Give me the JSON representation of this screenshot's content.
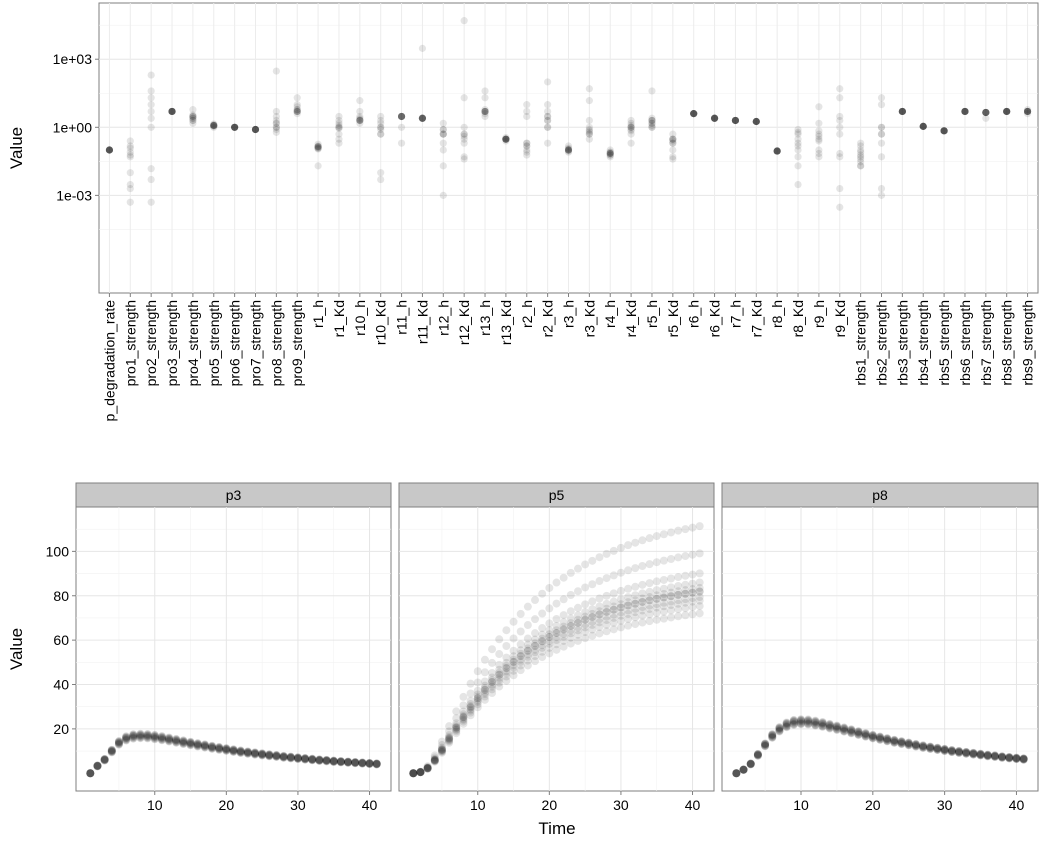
{
  "chart_data": [
    {
      "type": "scatter",
      "title": "",
      "xlabel": "",
      "ylabel": "Value",
      "y_scale": "log10",
      "ylim": [
        5e-08,
        300000
      ],
      "y_ticks": [
        {
          "value": 1000,
          "label": "1e+03"
        },
        {
          "value": 1,
          "label": "1e+00"
        },
        {
          "value": 0.001,
          "label": "1e-03"
        }
      ],
      "grid": true,
      "marker_color": "#000000",
      "marker_opacity": 0.1,
      "categories": [
        "p_degradation_rate",
        "pro1_strength",
        "pro2_strength",
        "pro3_strength",
        "pro4_strength",
        "pro5_strength",
        "pro6_strength",
        "pro7_strength",
        "pro8_strength",
        "pro9_strength",
        "r1_h",
        "r1_Kd",
        "r10_h",
        "r10_Kd",
        "r11_h",
        "r11_Kd",
        "r12_h",
        "r12_Kd",
        "r13_h",
        "r13_Kd",
        "r2_h",
        "r2_Kd",
        "r3_h",
        "r3_Kd",
        "r4_h",
        "r4_Kd",
        "r5_h",
        "r5_Kd",
        "r6_h",
        "r6_Kd",
        "r7_h",
        "r7_Kd",
        "r8_h",
        "r8_Kd",
        "r9_h",
        "r9_Kd",
        "rbs1_strength",
        "rbs2_strength",
        "rbs3_strength",
        "rbs4_strength",
        "rbs5_strength",
        "rbs6_strength",
        "rbs7_strength",
        "rbs8_strength",
        "rbs9_strength"
      ],
      "values": [
        [
          0.1,
          0.1,
          0.1,
          0.1,
          0.1,
          0.1,
          0.1,
          0.1,
          0.1,
          0.1
        ],
        [
          0.12,
          0.05,
          0.08,
          0.25,
          0.002,
          0.0005,
          0.003,
          0.15,
          0.06,
          0.01
        ],
        [
          0.015,
          0.005,
          0.0005,
          2.5,
          10,
          20,
          1,
          5,
          200,
          40
        ],
        [
          5,
          5,
          5,
          5,
          5,
          5,
          5,
          5,
          5,
          5
        ],
        [
          3,
          2,
          2.5,
          3.5,
          1.5,
          6,
          2,
          3,
          2.5,
          3
        ],
        [
          1.2,
          1.2,
          1.1,
          1.3,
          1.2,
          1,
          1.2,
          1.2,
          1.4,
          1.2
        ],
        [
          1,
          1,
          1,
          1,
          1,
          1,
          1,
          1,
          1,
          1
        ],
        [
          0.8,
          0.8,
          0.8,
          0.8,
          0.8,
          0.8,
          0.8,
          0.8,
          0.8,
          0.8
        ],
        [
          1.5,
          3,
          0.6,
          300,
          0.8,
          5,
          1,
          2,
          1,
          1.5
        ],
        [
          5,
          8,
          10,
          20,
          6,
          4,
          5,
          5,
          6,
          5
        ],
        [
          0.12,
          0.14,
          0.18,
          0.02,
          0.11,
          0.15,
          0.14,
          0.12,
          0.13,
          0.14
        ],
        [
          1,
          0.5,
          1.5,
          2,
          0.2,
          0.9,
          1.2,
          1,
          3,
          0.3
        ],
        [
          2,
          2.2,
          15,
          5,
          1.5,
          2.5,
          2,
          2,
          3,
          2
        ],
        [
          0.5,
          1,
          2,
          0.01,
          3,
          1,
          0.5,
          0.8,
          0.005,
          1.5
        ],
        [
          3,
          3,
          3,
          3,
          3,
          3,
          3,
          3,
          0.2,
          1
        ],
        [
          2.5,
          2.5,
          2.5,
          2.5,
          2.5,
          2.5,
          2.5,
          2.5,
          2.5,
          3000
        ],
        [
          0.8,
          0.5,
          0.02,
          0.2,
          1.5,
          0.1,
          0.001,
          0.5,
          0.8,
          0.5
        ],
        [
          0.5,
          0.4,
          0.3,
          20,
          0.05,
          0.04,
          50000,
          1,
          0.5,
          0.2
        ],
        [
          5,
          5,
          6,
          3,
          40,
          20,
          5,
          5,
          5,
          4
        ],
        [
          0.3,
          0.3,
          0.25,
          0.35,
          0.3,
          0.3,
          0.3,
          0.3,
          0.3,
          0.3
        ],
        [
          0.15,
          0.06,
          0.2,
          5,
          3,
          10,
          0.1,
          0.2,
          0.08,
          0.15
        ],
        [
          3,
          2,
          10,
          1,
          0.2,
          100,
          5,
          2,
          3,
          1
        ],
        [
          0.1,
          0.09,
          0.12,
          0.15,
          0.08,
          0.1,
          0.1,
          0.1,
          0.11,
          0.1
        ],
        [
          0.5,
          0.8,
          50,
          15,
          1,
          2,
          0.3,
          0.6,
          0.5,
          0.7
        ],
        [
          0.07,
          0.06,
          0.08,
          0.1,
          0.05,
          0.07,
          0.07,
          0.06,
          0.07,
          0.08
        ],
        [
          1,
          0.8,
          1.2,
          0.5,
          1.5,
          0.2,
          1,
          1,
          2,
          0.7
        ],
        [
          2,
          1.5,
          1,
          2.5,
          40,
          1.2,
          2,
          2,
          1.5,
          1
        ],
        [
          0.3,
          0.1,
          0.05,
          0.04,
          0.2,
          0.5,
          0.25,
          0.3,
          0.3,
          0.2
        ],
        [
          4,
          4,
          4,
          4,
          4,
          4,
          4,
          4,
          4,
          4
        ],
        [
          2.5,
          2.5,
          2.5,
          2.5,
          2.5,
          2.5,
          2.5,
          2.5,
          2.5,
          2.5
        ],
        [
          2,
          2,
          2,
          2,
          2,
          2,
          2,
          2,
          2,
          2
        ],
        [
          1.8,
          1.8,
          1.8,
          1.8,
          1.8,
          1.8,
          1.8,
          1.8,
          1.8,
          1.8
        ],
        [
          0.09,
          0.09,
          0.09,
          0.09,
          0.09,
          0.09,
          0.09,
          0.09,
          0.09,
          0.09
        ],
        [
          0.5,
          0.1,
          0.02,
          0.003,
          0.2,
          0.05,
          0.8,
          0.3,
          0.15,
          0.6
        ],
        [
          0.5,
          0.1,
          0.07,
          0.25,
          0.05,
          8,
          1.5,
          0.3,
          0.4,
          0.7
        ],
        [
          1,
          3,
          2,
          20,
          0.0003,
          0.05,
          0.07,
          50,
          0.5,
          0.002
        ],
        [
          0.06,
          0.04,
          0.03,
          0.02,
          0.1,
          0.15,
          0.05,
          0.2,
          0.02,
          0.08
        ],
        [
          0.5,
          0.001,
          0.002,
          0.2,
          10,
          20,
          1,
          1,
          0.5,
          0.05
        ],
        [
          5,
          5,
          5,
          5,
          5,
          5,
          5,
          5,
          5,
          5
        ],
        [
          1.1,
          1.1,
          1.1,
          1.1,
          1.1,
          1.1,
          1.1,
          1.1,
          1.1,
          1.1
        ],
        [
          0.7,
          0.7,
          0.7,
          0.7,
          0.7,
          0.7,
          0.7,
          0.7,
          0.7,
          0.7
        ],
        [
          5,
          5,
          5,
          5,
          5,
          5,
          5,
          5,
          5,
          5
        ],
        [
          4.5,
          4.5,
          4.5,
          4.5,
          4.5,
          4.5,
          4.5,
          4.5,
          4.5,
          2.5
        ],
        [
          5,
          5,
          5,
          5,
          5,
          5,
          5,
          5,
          5,
          5
        ],
        [
          5,
          5,
          5,
          4,
          6,
          5,
          5,
          5,
          5,
          5
        ]
      ]
    },
    {
      "type": "scatter",
      "title": "",
      "xlabel": "Time",
      "ylabel": "Value",
      "xlim": [
        -1,
        43
      ],
      "ylim": [
        -8,
        120
      ],
      "x_ticks": [
        10,
        20,
        30,
        40
      ],
      "y_ticks": [
        20,
        40,
        60,
        80,
        100
      ],
      "grid": true,
      "strip_fill": "#c8c8c8",
      "marker_color": "#000000",
      "marker_opacity": 0.1,
      "time": [
        1,
        2,
        3,
        4,
        5,
        6,
        7,
        8,
        9,
        10,
        11,
        12,
        13,
        14,
        15,
        16,
        17,
        18,
        19,
        20,
        21,
        22,
        23,
        24,
        25,
        26,
        27,
        28,
        29,
        30,
        31,
        32,
        33,
        34,
        35,
        36,
        37,
        38,
        39,
        40,
        41
      ],
      "panels": [
        {
          "name": "p3",
          "series": [
            {
              "scale": 1.0,
              "values": [
                0.0,
                3.3,
                6.1,
                10.0,
                13.7,
                15.7,
                16.6,
                16.8,
                16.7,
                16.3,
                15.8,
                15.2,
                14.6,
                14.0,
                13.4,
                12.8,
                12.3,
                11.7,
                11.2,
                10.7,
                10.2,
                9.7,
                9.3,
                8.9,
                8.5,
                8.1,
                7.8,
                7.4,
                7.1,
                6.8,
                6.5,
                6.2,
                5.9,
                5.7,
                5.4,
                5.2,
                5.0,
                4.8,
                4.6,
                4.4,
                4.2
              ]
            },
            {
              "scale": 1.03
            },
            {
              "scale": 0.97
            },
            {
              "scale": 1.06
            },
            {
              "scale": 0.94
            },
            {
              "scale": 1.02
            },
            {
              "scale": 0.98
            },
            {
              "scale": 1.05
            },
            {
              "scale": 0.95
            },
            {
              "scale": 1.01
            }
          ]
        },
        {
          "name": "p5",
          "series": [
            {
              "scale": 1.0,
              "values": [
                0.0,
                0.5,
                2.3,
                5.9,
                10.5,
                15.6,
                20.5,
                25.3,
                29.7,
                33.8,
                37.6,
                41.1,
                44.4,
                47.4,
                50.2,
                52.8,
                55.2,
                57.4,
                59.5,
                61.4,
                63.2,
                64.8,
                66.4,
                67.8,
                69.2,
                70.4,
                71.6,
                72.7,
                73.7,
                74.7,
                75.6,
                76.4,
                77.2,
                77.9,
                78.6,
                79.2,
                79.8,
                80.4,
                80.9,
                81.4,
                81.9
              ]
            },
            {
              "scale": 0.88
            },
            {
              "scale": 0.92
            },
            {
              "scale": 0.95
            },
            {
              "scale": 0.97
            },
            {
              "scale": 1.0
            },
            {
              "scale": 1.02
            },
            {
              "scale": 1.05
            },
            {
              "scale": 1.1
            },
            {
              "scale": 1.21
            },
            {
              "scale": 1.36
            }
          ]
        },
        {
          "name": "p8",
          "series": [
            {
              "scale": 1.0,
              "values": [
                0.0,
                1.6,
                4.2,
                8.3,
                12.8,
                16.8,
                19.8,
                21.8,
                22.9,
                23.2,
                23.1,
                22.6,
                22.0,
                21.2,
                20.5,
                19.7,
                18.9,
                18.1,
                17.3,
                16.5,
                15.8,
                15.1,
                14.4,
                13.8,
                13.2,
                12.6,
                12.0,
                11.5,
                11.0,
                10.5,
                10.0,
                9.6,
                9.2,
                8.8,
                8.4,
                8.0,
                7.7,
                7.3,
                7.0,
                6.7,
                6.4
              ]
            },
            {
              "scale": 1.03
            },
            {
              "scale": 0.97
            },
            {
              "scale": 1.05
            },
            {
              "scale": 0.95
            },
            {
              "scale": 1.02
            },
            {
              "scale": 0.98
            },
            {
              "scale": 1.04
            },
            {
              "scale": 0.96
            },
            {
              "scale": 1.01
            }
          ]
        }
      ]
    }
  ]
}
